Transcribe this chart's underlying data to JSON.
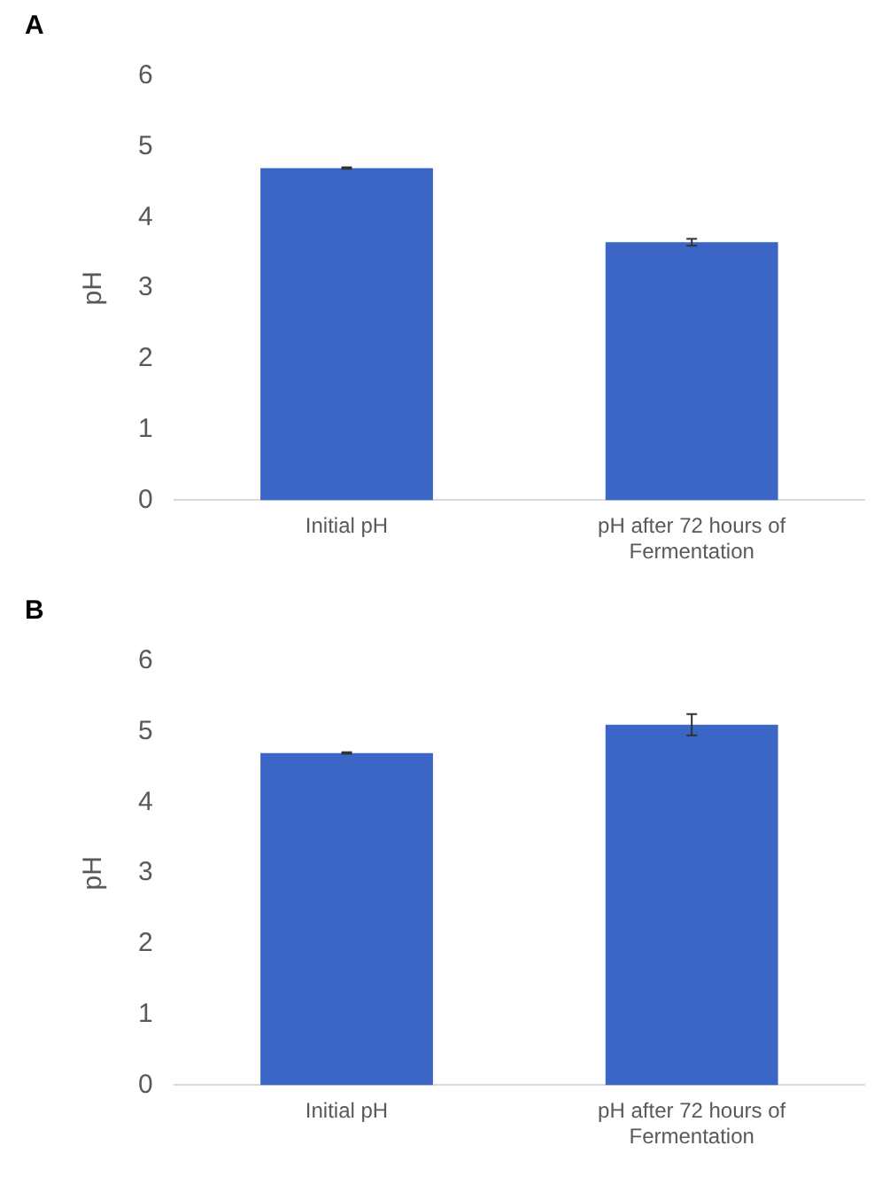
{
  "chart_data": [
    {
      "type": "bar",
      "title": "A",
      "ylabel": "pH",
      "categories": [
        "Initial pH",
        "pH after 72 hours of Fermentation"
      ],
      "values": [
        4.7,
        3.65
      ],
      "errors": [
        0.01,
        0.05
      ],
      "color": "#3b66c6",
      "ylim": [
        0,
        6
      ],
      "yticks": [
        0,
        1,
        2,
        3,
        4,
        5,
        6
      ],
      "grid": false,
      "legend": false
    },
    {
      "type": "bar",
      "title": "B",
      "ylabel": "pH",
      "categories": [
        "Initial pH",
        "pH after 72 hours of Fermentation"
      ],
      "values": [
        4.7,
        5.1
      ],
      "errors": [
        0.01,
        0.15
      ],
      "color": "#3b66c6",
      "ylim": [
        0,
        6
      ],
      "yticks": [
        0,
        1,
        2,
        3,
        4,
        5,
        6
      ],
      "grid": false,
      "legend": false
    }
  ]
}
